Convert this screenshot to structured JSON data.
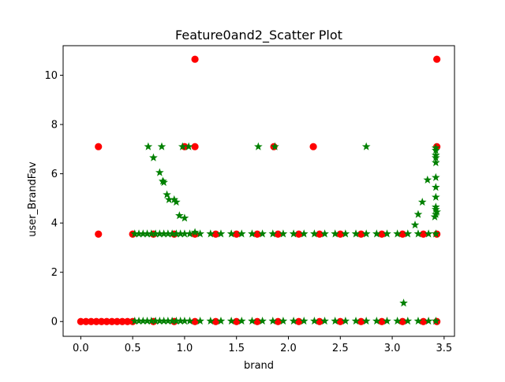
{
  "chart_data": {
    "type": "scatter",
    "title": "Feature0and2_Scatter Plot",
    "xlabel": "brand",
    "ylabel": "user_BrandFav",
    "xlim": [
      -0.17,
      3.6
    ],
    "ylim": [
      -0.6,
      11.2
    ],
    "xticks": [
      0.0,
      0.5,
      1.0,
      1.5,
      2.0,
      2.5,
      3.0,
      3.5
    ],
    "xtick_labels": [
      "0.0",
      "0.5",
      "1.0",
      "1.5",
      "2.0",
      "2.5",
      "3.0",
      "3.5"
    ],
    "yticks": [
      0,
      2,
      4,
      6,
      8,
      10
    ],
    "ytick_labels": [
      "0",
      "2",
      "4",
      "6",
      "8",
      "10"
    ],
    "grid": false,
    "legend": "none",
    "series": [
      {
        "color": "#ff0000",
        "marker": "circle",
        "points": [
          [
            0.0,
            0.0
          ],
          [
            0.05,
            0.0
          ],
          [
            0.1,
            0.0
          ],
          [
            0.15,
            0.0
          ],
          [
            0.2,
            0.0
          ],
          [
            0.25,
            0.0
          ],
          [
            0.3,
            0.0
          ],
          [
            0.35,
            0.0
          ],
          [
            0.4,
            0.0
          ],
          [
            0.45,
            0.0
          ],
          [
            0.5,
            0.0
          ],
          [
            0.7,
            0.0
          ],
          [
            0.9,
            0.0
          ],
          [
            1.1,
            0.0
          ],
          [
            1.3,
            0.0
          ],
          [
            1.5,
            0.0
          ],
          [
            1.7,
            0.0
          ],
          [
            1.9,
            0.0
          ],
          [
            2.1,
            0.0
          ],
          [
            2.3,
            0.0
          ],
          [
            2.5,
            0.0
          ],
          [
            2.7,
            0.0
          ],
          [
            2.9,
            0.0
          ],
          [
            3.1,
            0.0
          ],
          [
            3.3,
            0.0
          ],
          [
            3.43,
            0.0
          ],
          [
            0.17,
            3.55
          ],
          [
            0.5,
            3.55
          ],
          [
            0.7,
            3.55
          ],
          [
            0.9,
            3.55
          ],
          [
            1.1,
            3.55
          ],
          [
            1.3,
            3.55
          ],
          [
            1.5,
            3.55
          ],
          [
            1.7,
            3.55
          ],
          [
            1.9,
            3.55
          ],
          [
            2.1,
            3.55
          ],
          [
            2.3,
            3.55
          ],
          [
            2.5,
            3.55
          ],
          [
            2.7,
            3.55
          ],
          [
            2.9,
            3.55
          ],
          [
            3.1,
            3.55
          ],
          [
            3.3,
            3.55
          ],
          [
            3.43,
            3.55
          ],
          [
            0.17,
            7.1
          ],
          [
            1.0,
            7.1
          ],
          [
            1.1,
            7.1
          ],
          [
            1.86,
            7.1
          ],
          [
            2.24,
            7.1
          ],
          [
            3.43,
            7.1
          ],
          [
            1.1,
            10.65
          ],
          [
            3.43,
            10.65
          ]
        ]
      },
      {
        "color": "#008000",
        "marker": "star",
        "points": [
          [
            0.52,
            0.02
          ],
          [
            0.56,
            0.02
          ],
          [
            0.6,
            0.02
          ],
          [
            0.64,
            0.02
          ],
          [
            0.68,
            0.02
          ],
          [
            0.72,
            0.02
          ],
          [
            0.76,
            0.02
          ],
          [
            0.8,
            0.02
          ],
          [
            0.84,
            0.02
          ],
          [
            0.88,
            0.02
          ],
          [
            0.92,
            0.02
          ],
          [
            0.96,
            0.02
          ],
          [
            1.0,
            0.02
          ],
          [
            1.05,
            0.02
          ],
          [
            1.15,
            0.02
          ],
          [
            1.25,
            0.02
          ],
          [
            1.35,
            0.02
          ],
          [
            1.45,
            0.02
          ],
          [
            1.55,
            0.02
          ],
          [
            1.65,
            0.02
          ],
          [
            1.75,
            0.02
          ],
          [
            1.85,
            0.02
          ],
          [
            1.95,
            0.02
          ],
          [
            2.05,
            0.02
          ],
          [
            2.15,
            0.02
          ],
          [
            2.25,
            0.02
          ],
          [
            2.35,
            0.02
          ],
          [
            2.45,
            0.02
          ],
          [
            2.55,
            0.02
          ],
          [
            2.65,
            0.02
          ],
          [
            2.75,
            0.02
          ],
          [
            2.85,
            0.02
          ],
          [
            2.95,
            0.02
          ],
          [
            3.05,
            0.02
          ],
          [
            3.15,
            0.02
          ],
          [
            3.25,
            0.02
          ],
          [
            3.35,
            0.02
          ],
          [
            3.42,
            0.02
          ],
          [
            0.52,
            3.56
          ],
          [
            0.56,
            3.56
          ],
          [
            0.6,
            3.56
          ],
          [
            0.64,
            3.56
          ],
          [
            0.68,
            3.56
          ],
          [
            0.72,
            3.56
          ],
          [
            0.76,
            3.56
          ],
          [
            0.8,
            3.56
          ],
          [
            0.84,
            3.56
          ],
          [
            0.88,
            3.56
          ],
          [
            0.92,
            3.56
          ],
          [
            0.96,
            3.56
          ],
          [
            1.0,
            3.56
          ],
          [
            1.05,
            3.56
          ],
          [
            1.1,
            3.62
          ],
          [
            1.15,
            3.56
          ],
          [
            1.25,
            3.56
          ],
          [
            1.35,
            3.56
          ],
          [
            1.45,
            3.56
          ],
          [
            1.55,
            3.56
          ],
          [
            1.65,
            3.56
          ],
          [
            1.75,
            3.56
          ],
          [
            1.85,
            3.56
          ],
          [
            1.95,
            3.56
          ],
          [
            2.05,
            3.56
          ],
          [
            2.15,
            3.56
          ],
          [
            2.25,
            3.56
          ],
          [
            2.35,
            3.56
          ],
          [
            2.45,
            3.56
          ],
          [
            2.55,
            3.56
          ],
          [
            2.65,
            3.56
          ],
          [
            2.75,
            3.56
          ],
          [
            2.85,
            3.56
          ],
          [
            2.95,
            3.56
          ],
          [
            3.05,
            3.56
          ],
          [
            3.15,
            3.56
          ],
          [
            3.25,
            3.56
          ],
          [
            3.35,
            3.56
          ],
          [
            3.42,
            3.56
          ],
          [
            0.65,
            7.1
          ],
          [
            0.7,
            6.65
          ],
          [
            0.78,
            7.1
          ],
          [
            0.76,
            6.05
          ],
          [
            0.79,
            5.7
          ],
          [
            0.8,
            5.65
          ],
          [
            0.83,
            5.15
          ],
          [
            0.85,
            4.95
          ],
          [
            0.9,
            4.95
          ],
          [
            0.92,
            4.85
          ],
          [
            0.95,
            4.3
          ],
          [
            1.0,
            4.2
          ],
          [
            0.98,
            7.1
          ],
          [
            1.04,
            7.1
          ],
          [
            1.71,
            7.1
          ],
          [
            1.87,
            7.1
          ],
          [
            2.75,
            7.1
          ],
          [
            3.11,
            0.75
          ],
          [
            3.22,
            3.92
          ],
          [
            3.25,
            4.35
          ],
          [
            3.29,
            4.85
          ],
          [
            3.34,
            5.75
          ],
          [
            3.42,
            4.35
          ],
          [
            3.42,
            4.55
          ],
          [
            3.42,
            4.65
          ],
          [
            3.42,
            5.05
          ],
          [
            3.42,
            5.45
          ],
          [
            3.42,
            5.85
          ],
          [
            3.42,
            6.45
          ],
          [
            3.42,
            6.65
          ],
          [
            3.42,
            6.75
          ],
          [
            3.42,
            6.95
          ],
          [
            3.42,
            7.05
          ],
          [
            3.41,
            4.25
          ],
          [
            3.43,
            4.45
          ]
        ]
      }
    ]
  }
}
